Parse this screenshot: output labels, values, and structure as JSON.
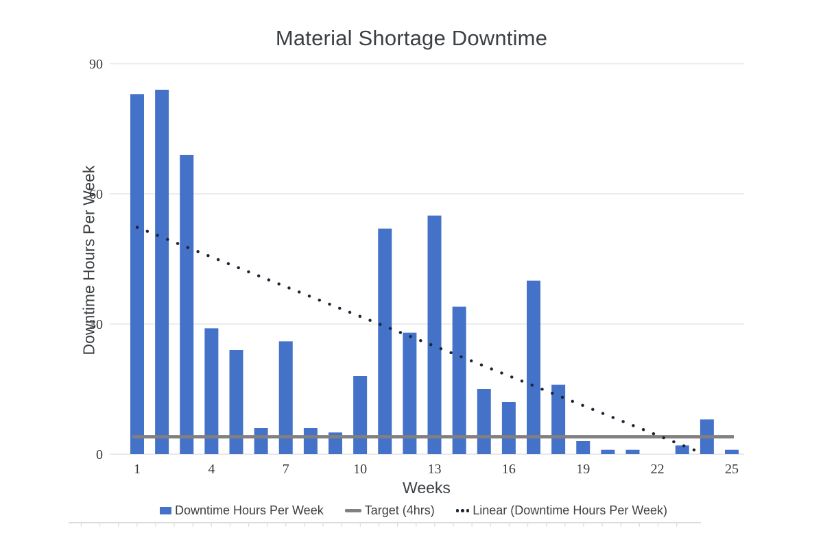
{
  "chart_data": {
    "type": "bar",
    "title": "Material Shortage Downtime",
    "xlabel": "Weeks",
    "ylabel": "Downtime Hours Per Week",
    "ylim": [
      0,
      90
    ],
    "yticks": [
      0,
      30,
      60,
      90
    ],
    "xticks": [
      1,
      4,
      7,
      10,
      13,
      16,
      19,
      22,
      25
    ],
    "categories": [
      1,
      2,
      3,
      4,
      5,
      6,
      7,
      8,
      9,
      10,
      11,
      12,
      13,
      14,
      15,
      16,
      17,
      18,
      19,
      20,
      21,
      22,
      23,
      24,
      25
    ],
    "grid": true,
    "legend_position": "bottom",
    "series": [
      {
        "name": "Downtime Hours Per Week",
        "type": "bar",
        "color": "#4472c9",
        "values": [
          83,
          84,
          69,
          29,
          24,
          6,
          26,
          6,
          5,
          18,
          52,
          28,
          55,
          34,
          15,
          12,
          40,
          16,
          3,
          1,
          1,
          0,
          2,
          8,
          1
        ]
      },
      {
        "name": "Target (4hrs)",
        "type": "line",
        "color": "#808080",
        "value": 4
      },
      {
        "name": "Linear (Downtime Hours Per Week)",
        "type": "trendline",
        "style": "dotted",
        "color": "#1b2533",
        "points": [
          {
            "week": 1,
            "value": 52.3
          },
          {
            "week": 23.7,
            "value": 0
          }
        ]
      }
    ],
    "colors": {
      "gridline": "#e2e2e2",
      "baseline": "#dcdcdc",
      "tick_text": "#33373b",
      "title_text": "#3c4043"
    }
  }
}
